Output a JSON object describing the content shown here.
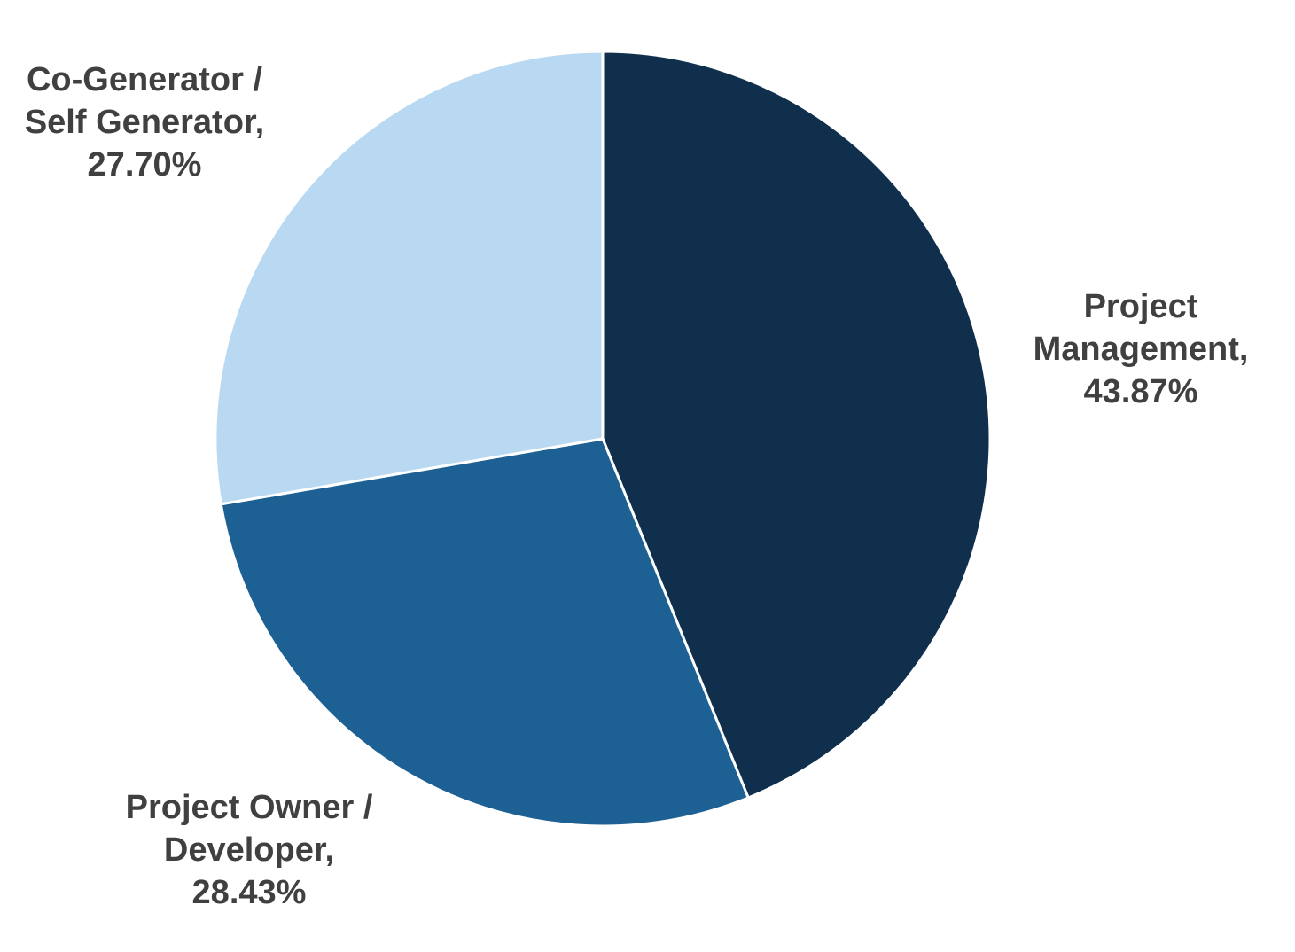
{
  "chart_data": {
    "type": "pie",
    "start_angle_deg": 0,
    "direction": "clockwise",
    "slices": [
      {
        "label_lines": [
          "Project",
          "Management,",
          "43.87%"
        ],
        "category": "Project Management",
        "value": 43.87,
        "value_text": "43.87%",
        "color": "#0f2f4d"
      },
      {
        "label_lines": [
          "Project Owner /",
          "Developer,",
          "28.43%"
        ],
        "category": "Project Owner / Developer",
        "value": 28.43,
        "value_text": "28.43%",
        "color": "#1d6093"
      },
      {
        "label_lines": [
          "Co-Generator /",
          "Self Generator,",
          "27.70%"
        ],
        "category": "Co-Generator / Self Generator",
        "value": 27.7,
        "value_text": "27.70%",
        "color": "#b8d9f1"
      }
    ],
    "label_color": "#404040",
    "slice_border_color": "#ffffff",
    "legend": "none"
  }
}
